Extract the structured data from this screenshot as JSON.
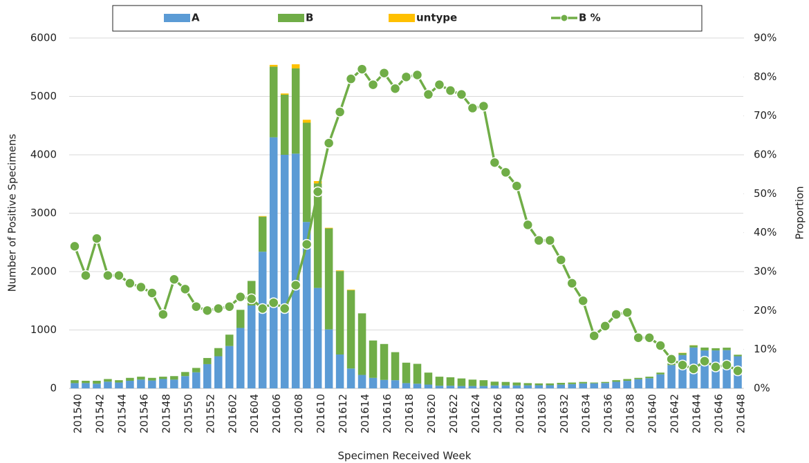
{
  "chart_data": {
    "type": "bar-line",
    "x_label": "Specimen Received Week",
    "y_label": "Number of Positive Specimens",
    "y2_label": "Proportion",
    "categories": [
      "201540",
      null,
      "201542",
      null,
      "201544",
      null,
      "201546",
      null,
      "201548",
      null,
      "201550",
      null,
      "201552",
      null,
      "201602",
      null,
      "201604",
      null,
      "201606",
      null,
      "201608",
      null,
      "201610",
      null,
      "201612",
      null,
      "201614",
      null,
      "201616",
      null,
      "201618",
      null,
      "201620",
      null,
      "201622",
      null,
      "201624",
      null,
      "201626",
      null,
      "201628",
      null,
      "201630",
      null,
      "201632",
      null,
      "201634",
      null,
      "201636",
      null,
      "201638",
      null,
      "201640",
      null,
      "201642",
      null,
      "201644",
      null,
      "201646",
      null,
      "201648"
    ],
    "series": [
      {
        "name": "A",
        "type": "bar",
        "color": "#5b9bd5",
        "values": [
          90,
          90,
          80,
          115,
          100,
          130,
          150,
          135,
          160,
          150,
          210,
          275,
          415,
          550,
          725,
          1035,
          1420,
          2340,
          4300,
          4000,
          4020,
          2850,
          1720,
          1010,
          580,
          340,
          230,
          180,
          145,
          140,
          90,
          80,
          65,
          45,
          45,
          40,
          40,
          40,
          50,
          50,
          50,
          52,
          53,
          53,
          64,
          73,
          85,
          87,
          92,
          113,
          129,
          157,
          174,
          240,
          398,
          570,
          700,
          650,
          650,
          655,
          550
        ]
      },
      {
        "name": "B",
        "type": "bar",
        "color": "#70ad47",
        "values": [
          50,
          40,
          50,
          45,
          40,
          50,
          50,
          45,
          40,
          60,
          70,
          75,
          105,
          140,
          195,
          310,
          420,
          600,
          1210,
          1030,
          1460,
          1700,
          1790,
          1730,
          1430,
          1340,
          1055,
          640,
          615,
          480,
          350,
          340,
          205,
          155,
          145,
          130,
          110,
          100,
          65,
          60,
          50,
          38,
          32,
          32,
          31,
          27,
          25,
          13,
          18,
          27,
          31,
          23,
          26,
          30,
          32,
          35,
          37,
          49,
          38,
          42,
          26
        ]
      },
      {
        "name": "untype",
        "type": "bar",
        "color": "#ffc000",
        "values": [
          0,
          0,
          0,
          0,
          0,
          0,
          0,
          0,
          0,
          0,
          0,
          0,
          0,
          0,
          0,
          0,
          0,
          10,
          30,
          20,
          70,
          50,
          40,
          10,
          10,
          10,
          0,
          0,
          0,
          0,
          0,
          0,
          0,
          0,
          0,
          0,
          0,
          0,
          0,
          0,
          0,
          0,
          0,
          0,
          0,
          0,
          0,
          0,
          0,
          0,
          0,
          0,
          0,
          0,
          0,
          5,
          3,
          0,
          0,
          0,
          0
        ]
      },
      {
        "name": "B %",
        "type": "line",
        "axis": "y2",
        "color": "#70ad47",
        "values": [
          36.5,
          29,
          38.5,
          29,
          29,
          27,
          26,
          24.5,
          19,
          28,
          25.5,
          21,
          20,
          20.5,
          21,
          23.5,
          23,
          20.5,
          22,
          20.5,
          26.5,
          37,
          50.5,
          63,
          71,
          79.5,
          82,
          78,
          81,
          77,
          80,
          80.5,
          75.5,
          78,
          76.5,
          75.5,
          72,
          72.5,
          58,
          55.5,
          52,
          42,
          38,
          38,
          33,
          27,
          22.5,
          13.5,
          16,
          19,
          19.5,
          13,
          13,
          11,
          7.5,
          6,
          5,
          7,
          5.5,
          6,
          4.5
        ]
      }
    ],
    "ylim": [
      0,
      6000
    ],
    "yticks": [
      0,
      1000,
      2000,
      3000,
      4000,
      5000,
      6000
    ],
    "y2lim": [
      0,
      90
    ],
    "y2ticks": [
      {
        "value": 0,
        "label": "0%"
      },
      {
        "value": 10,
        "label": "10%"
      },
      {
        "value": 20,
        "label": "20%"
      },
      {
        "value": 30,
        "label": "30%"
      },
      {
        "value": 40,
        "label": "40%"
      },
      {
        "value": 50,
        "label": "50%"
      },
      {
        "value": 60,
        "label": "60%"
      },
      {
        "value": 70,
        "label": "70%"
      },
      {
        "value": 80,
        "label": "80%"
      },
      {
        "value": 90,
        "label": "90%"
      }
    ],
    "grid": true,
    "legend": "top"
  }
}
